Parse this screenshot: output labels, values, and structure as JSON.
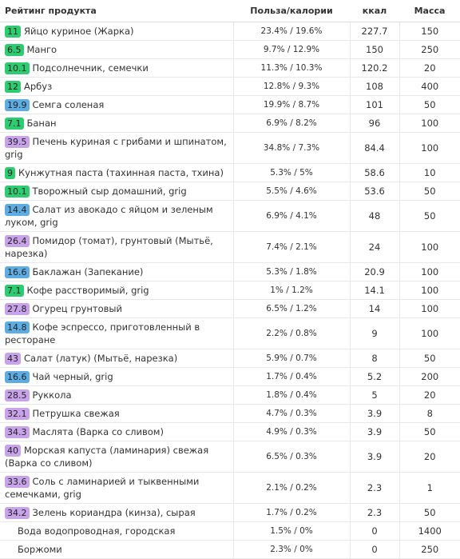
{
  "table": {
    "header": [
      "Рейтинг продукта",
      "Польза/калории",
      "ккал",
      "Масса"
    ],
    "rows": [
      {
        "rating": 11,
        "color": "#2ecc71",
        "name": "Яйцо куриное (Жарка)",
        "ratio": "23.4% / 19.6%",
        "kcal": 227.7,
        "mass": 150
      },
      {
        "rating": 6.5,
        "color": "#2ecc71",
        "name": "Манго",
        "ratio": "9.7% / 12.9%",
        "kcal": 150,
        "mass": 250
      },
      {
        "rating": 10.1,
        "color": "#2ecc71",
        "name": "Подсолнечник, семечки",
        "ratio": "11.3% / 10.3%",
        "kcal": 120.2,
        "mass": 20
      },
      {
        "rating": 12,
        "color": "#2ecc71",
        "name": "Арбуз",
        "ratio": "12.8% / 9.3%",
        "kcal": 108,
        "mass": 400
      },
      {
        "rating": 19.9,
        "color": "#5dade2",
        "name": "Семга соленая",
        "ratio": "19.9% / 8.7%",
        "kcal": 101,
        "mass": 50
      },
      {
        "rating": 7.1,
        "color": "#2ecc71",
        "name": "Банан",
        "ratio": "6.9% / 8.2%",
        "kcal": 96,
        "mass": 100
      },
      {
        "rating": 39.5,
        "color": "#c9a3ea",
        "name": "Печень куриная с грибами и шпинатом, grig",
        "ratio": "34.8% / 7.3%",
        "kcal": 84.4,
        "mass": 100
      },
      {
        "rating": 9,
        "color": "#2ecc71",
        "name": "Кунжутная паста (тахинная паста, тхина)",
        "ratio": "5.3% / 5%",
        "kcal": 58.6,
        "mass": 10
      },
      {
        "rating": 10.1,
        "color": "#2ecc71",
        "name": "Творожный сыр домашний, grig",
        "ratio": "5.5% / 4.6%",
        "kcal": 53.6,
        "mass": 50
      },
      {
        "rating": 14.4,
        "color": "#5dade2",
        "name": "Салат из авокадо с яйцом и зеленым луком, grig",
        "ratio": "6.9% / 4.1%",
        "kcal": 48,
        "mass": 50
      },
      {
        "rating": 26.4,
        "color": "#c9a3ea",
        "name": "Помидор (томат), грунтовый (Мытьё, нарезка)",
        "ratio": "7.4% / 2.1%",
        "kcal": 24,
        "mass": 100
      },
      {
        "rating": 16.6,
        "color": "#5dade2",
        "name": "Баклажан (Запекание)",
        "ratio": "5.3% / 1.8%",
        "kcal": 20.9,
        "mass": 100
      },
      {
        "rating": 7.1,
        "color": "#2ecc71",
        "name": "Кофе расстворимый, grig",
        "ratio": "1% / 1.2%",
        "kcal": 14.1,
        "mass": 100
      },
      {
        "rating": 27.8,
        "color": "#c9a3ea",
        "name": "Огурец грунтовый",
        "ratio": "6.5% / 1.2%",
        "kcal": 14,
        "mass": 100
      },
      {
        "rating": 14.8,
        "color": "#5dade2",
        "name": "Кофе эспрессо, приготовленный в ресторане",
        "ratio": "2.2% / 0.8%",
        "kcal": 9,
        "mass": 100
      },
      {
        "rating": 43,
        "color": "#c9a3ea",
        "name": "Салат (латук) (Мытьё, нарезка)",
        "ratio": "5.9% / 0.7%",
        "kcal": 8,
        "mass": 50
      },
      {
        "rating": 16.6,
        "color": "#5dade2",
        "name": "Чай черный, grig",
        "ratio": "1.7% / 0.4%",
        "kcal": 5.2,
        "mass": 200
      },
      {
        "rating": 28.5,
        "color": "#c9a3ea",
        "name": "Руккола",
        "ratio": "1.8% / 0.4%",
        "kcal": 5,
        "mass": 20
      },
      {
        "rating": 32.1,
        "color": "#c9a3ea",
        "name": "Петрушка свежая",
        "ratio": "4.7% / 0.3%",
        "kcal": 3.9,
        "mass": 8
      },
      {
        "rating": 34.3,
        "color": "#c9a3ea",
        "name": "Маслята (Варка со сливом)",
        "ratio": "4.9% / 0.3%",
        "kcal": 3.9,
        "mass": 50
      },
      {
        "rating": 40,
        "color": "#c9a3ea",
        "name": "Морская капуста (ламинария) свежая (Варка со сливом)",
        "ratio": "6.5% / 0.3%",
        "kcal": 3.9,
        "mass": 20
      },
      {
        "rating": 33.6,
        "color": "#c9a3ea",
        "name": "Соль с ламинарией и тыквенными семечками, grig",
        "ratio": "2.1% / 0.2%",
        "kcal": 2.3,
        "mass": 1
      },
      {
        "rating": 34.2,
        "color": "#c9a3ea",
        "name": "Зелень кориандра (кинза), сырая",
        "ratio": "1.7% / 0.2%",
        "kcal": 2.3,
        "mass": 50
      },
      {
        "rating": null,
        "color": null,
        "name": "Вода водопроводная, городская",
        "ratio": "1.5% / 0%",
        "kcal": 0,
        "mass": 1400
      },
      {
        "rating": null,
        "color": null,
        "name": "Боржоми",
        "ratio": "2.3% / 0%",
        "kcal": 0,
        "mass": 250
      }
    ]
  }
}
